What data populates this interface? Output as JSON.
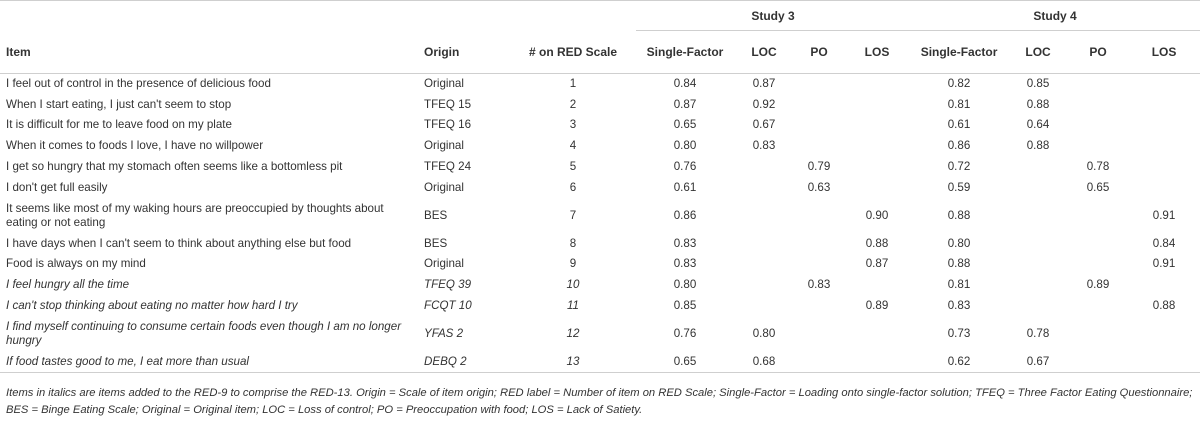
{
  "table": {
    "study3_label": "Study 3",
    "study4_label": "Study 4",
    "columns": [
      "Item",
      "Origin",
      "# on RED Scale",
      "Single-Factor",
      "LOC",
      "PO",
      "LOS",
      "Single-Factor",
      "LOC",
      "PO",
      "LOS"
    ],
    "rows": [
      {
        "item": "I feel out of control in the presence of delicious food",
        "origin": "Original",
        "red": "1",
        "s3_sf": "0.84",
        "s3_loc": "0.87",
        "s3_po": "",
        "s3_los": "",
        "s4_sf": "0.82",
        "s4_loc": "0.85",
        "s4_po": "",
        "s4_los": ""
      },
      {
        "item": "When I start eating, I just can't seem to stop",
        "origin": "TFEQ 15",
        "red": "2",
        "s3_sf": "0.87",
        "s3_loc": "0.92",
        "s3_po": "",
        "s3_los": "",
        "s4_sf": "0.81",
        "s4_loc": "0.88",
        "s4_po": "",
        "s4_los": ""
      },
      {
        "item": "It is difficult for me to leave food on my plate",
        "origin": "TFEQ 16",
        "red": "3",
        "s3_sf": "0.65",
        "s3_loc": "0.67",
        "s3_po": "",
        "s3_los": "",
        "s4_sf": "0.61",
        "s4_loc": "0.64",
        "s4_po": "",
        "s4_los": ""
      },
      {
        "item": "When it comes to foods I love, I have no willpower",
        "origin": "Original",
        "red": "4",
        "s3_sf": "0.80",
        "s3_loc": "0.83",
        "s3_po": "",
        "s3_los": "",
        "s4_sf": "0.86",
        "s4_loc": "0.88",
        "s4_po": "",
        "s4_los": ""
      },
      {
        "item": "I get so hungry that my stomach often seems like a bottomless pit",
        "origin": "TFEQ 24",
        "red": "5",
        "s3_sf": "0.76",
        "s3_loc": "",
        "s3_po": "0.79",
        "s3_los": "",
        "s4_sf": "0.72",
        "s4_loc": "",
        "s4_po": "0.78",
        "s4_los": ""
      },
      {
        "item": "I don't get full easily",
        "origin": "Original",
        "red": "6",
        "s3_sf": "0.61",
        "s3_loc": "",
        "s3_po": "0.63",
        "s3_los": "",
        "s4_sf": "0.59",
        "s4_loc": "",
        "s4_po": "0.65",
        "s4_los": ""
      },
      {
        "item": "It seems like most of my waking hours are preoccupied by thoughts about eating or not eating",
        "origin": "BES",
        "red": "7",
        "s3_sf": "0.86",
        "s3_loc": "",
        "s3_po": "",
        "s3_los": "0.90",
        "s4_sf": "0.88",
        "s4_loc": "",
        "s4_po": "",
        "s4_los": "0.91"
      },
      {
        "item": "I have days when I can't seem to think about anything else but food",
        "origin": "BES",
        "red": "8",
        "s3_sf": "0.83",
        "s3_loc": "",
        "s3_po": "",
        "s3_los": "0.88",
        "s4_sf": "0.80",
        "s4_loc": "",
        "s4_po": "",
        "s4_los": "0.84"
      },
      {
        "item": "Food is always on my mind",
        "origin": "Original",
        "red": "9",
        "s3_sf": "0.83",
        "s3_loc": "",
        "s3_po": "",
        "s3_los": "0.87",
        "s4_sf": "0.88",
        "s4_loc": "",
        "s4_po": "",
        "s4_los": "0.91"
      },
      {
        "item": "I feel hungry all the time",
        "origin": "TFEQ 39",
        "red": "10",
        "s3_sf": "0.80",
        "s3_loc": "",
        "s3_po": "0.83",
        "s3_los": "",
        "s4_sf": "0.81",
        "s4_loc": "",
        "s4_po": "0.89",
        "s4_los": ""
      },
      {
        "item": "I can't stop thinking about eating no matter how hard I try",
        "origin": "FCQT 10",
        "red": "11",
        "s3_sf": "0.85",
        "s3_loc": "",
        "s3_po": "",
        "s3_los": "0.89",
        "s4_sf": "0.83",
        "s4_loc": "",
        "s4_po": "",
        "s4_los": "0.88"
      },
      {
        "item": "I find myself continuing to consume certain foods even though I am no longer hungry",
        "origin": "YFAS 2",
        "red": "12",
        "s3_sf": "0.76",
        "s3_loc": "0.80",
        "s3_po": "",
        "s3_los": "",
        "s4_sf": "0.73",
        "s4_loc": "0.78",
        "s4_po": "",
        "s4_los": ""
      },
      {
        "item": "If food tastes good to me, I eat more than usual",
        "origin": "DEBQ 2",
        "red": "13",
        "s3_sf": "0.65",
        "s3_loc": "0.68",
        "s3_po": "",
        "s3_los": "",
        "s4_sf": "0.62",
        "s4_loc": "0.67",
        "s4_po": "",
        "s4_los": ""
      }
    ],
    "note": "Items in italics are items added to the RED-9 to comprise the RED-13. Origin = Scale of item origin; RED label = Number of item on RED Scale; Single-Factor = Loading onto single-factor solution; TFEQ = Three Factor Eating Questionnaire; BES = Binge Eating Scale; Original = Original item; LOC = Loss of control; PO = Preoccupation with food; LOS = Lack of Satiety."
  }
}
